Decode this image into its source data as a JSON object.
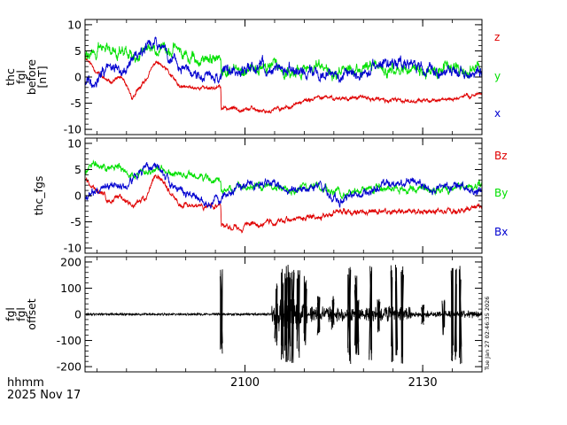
{
  "figure": {
    "footer": {
      "time_label": "hhmm",
      "date_label": "2025 Nov 17"
    },
    "stamp": "Tue Jan 27 02:46:35 2026"
  },
  "chart_data": [
    {
      "type": "line",
      "ylabel": [
        "thc",
        "fgl",
        "before",
        "[nT]"
      ],
      "ylim": [
        -11,
        11
      ],
      "yticks": [
        -10,
        -5,
        0,
        5,
        10
      ],
      "xlim": [
        2073,
        2140
      ],
      "xticks": [
        2100,
        2130
      ],
      "xtick_labels": [
        "",
        ""
      ],
      "series": [
        {
          "name": "z",
          "color": "#e00000",
          "seed": 11,
          "noise": 0.25,
          "x": [
            2073,
            2075,
            2077,
            2079,
            2081,
            2083,
            2085,
            2087,
            2089,
            2091,
            2093,
            2095.9,
            2096,
            2100,
            2104,
            2108,
            2112,
            2116,
            2120,
            2124,
            2128,
            2132,
            2136,
            2140
          ],
          "values": [
            4,
            1,
            -1,
            0,
            -4,
            -1,
            3,
            1,
            -2,
            -2,
            -2,
            -2,
            -6,
            -6,
            -6.5,
            -5.5,
            -4,
            -4,
            -4,
            -4.5,
            -4.5,
            -4.5,
            -4,
            -3
          ]
        },
        {
          "name": "y",
          "color": "#00e000",
          "seed": 22,
          "noise": 0.7,
          "x": [
            2073,
            2075,
            2077,
            2079,
            2081,
            2083,
            2085,
            2087,
            2089,
            2091,
            2093,
            2095.9,
            2096,
            2100,
            2104,
            2108,
            2112,
            2116,
            2120,
            2124,
            2128,
            2132,
            2136,
            2140
          ],
          "values": [
            4,
            5,
            6,
            5,
            4,
            5.5,
            5,
            5,
            4.5,
            4,
            3.5,
            3,
            1,
            1.5,
            2,
            1,
            2,
            1,
            2,
            1.5,
            1.5,
            1.5,
            1.5,
            1.5
          ]
        },
        {
          "name": "x",
          "color": "#0000d0",
          "seed": 33,
          "noise": 0.7,
          "x": [
            2073,
            2075,
            2077,
            2079,
            2081,
            2083,
            2085,
            2087,
            2089,
            2091,
            2093,
            2095.9,
            2096,
            2100,
            2104,
            2108,
            2112,
            2116,
            2120,
            2124,
            2128,
            2132,
            2136,
            2140
          ],
          "values": [
            -1,
            0,
            2,
            2,
            3,
            5,
            6,
            4,
            2,
            1,
            0,
            0,
            0.5,
            2,
            2,
            1,
            1,
            0,
            1,
            2.5,
            2.5,
            1,
            1,
            1
          ]
        }
      ]
    },
    {
      "type": "line",
      "ylabel": [
        "thc_fgs"
      ],
      "ylim": [
        -11,
        11
      ],
      "yticks": [
        -10,
        -5,
        0,
        5,
        10
      ],
      "xlim": [
        2073,
        2140
      ],
      "xticks": [
        2100,
        2130
      ],
      "xtick_labels": [
        "",
        ""
      ],
      "series": [
        {
          "name": "Bz",
          "color": "#e00000",
          "seed": 44,
          "noise": 0.35,
          "x": [
            2073,
            2075,
            2077,
            2079,
            2081,
            2083,
            2085,
            2087,
            2089,
            2091,
            2093,
            2095.9,
            2096,
            2100,
            2104,
            2108,
            2112,
            2116,
            2120,
            2124,
            2128,
            2132,
            2136,
            2140
          ],
          "values": [
            3,
            1,
            -1,
            0,
            -2,
            -1,
            4,
            1,
            -2,
            -2,
            -2,
            -2,
            -6,
            -6,
            -5,
            -4.5,
            -4,
            -3,
            -3,
            -3,
            -3,
            -3,
            -3,
            -2
          ]
        },
        {
          "name": "By",
          "color": "#00e000",
          "seed": 55,
          "noise": 0.45,
          "x": [
            2073,
            2075,
            2077,
            2079,
            2081,
            2083,
            2085,
            2087,
            2089,
            2091,
            2093,
            2095.9,
            2096,
            2100,
            2104,
            2108,
            2112,
            2116,
            2120,
            2124,
            2128,
            2132,
            2136,
            2140
          ],
          "values": [
            5,
            6,
            5.5,
            5,
            4,
            5,
            5,
            4.5,
            4,
            4,
            3.5,
            3,
            1,
            1.5,
            2,
            1,
            2,
            0,
            1,
            1.5,
            1.5,
            1,
            1.5,
            2
          ]
        },
        {
          "name": "Bx",
          "color": "#0000d0",
          "seed": 66,
          "noise": 0.5,
          "x": [
            2073,
            2075,
            2077,
            2079,
            2081,
            2083,
            2085,
            2087,
            2089,
            2091,
            2093,
            2095.9,
            2096,
            2100,
            2104,
            2108,
            2112,
            2116,
            2120,
            2124,
            2128,
            2132,
            2136,
            2140
          ],
          "values": [
            0,
            1,
            2,
            2,
            3,
            5,
            6,
            3,
            1,
            0,
            -1,
            -1,
            0,
            2,
            2.5,
            1,
            2,
            -1,
            1,
            2,
            3,
            1,
            2,
            1
          ]
        }
      ]
    },
    {
      "type": "line",
      "ylabel": [
        "fgl",
        "fgl",
        "offset"
      ],
      "ylim": [
        -220,
        220
      ],
      "yticks": [
        -200,
        -100,
        0,
        100,
        200
      ],
      "xlim": [
        2073,
        2140
      ],
      "xticks": [
        2100,
        2130
      ],
      "xtick_labels": [
        "2100",
        "2130"
      ],
      "series": [
        {
          "name": "",
          "color": "#000000",
          "seed": 77,
          "noise": 0,
          "x": [
            2073,
            2140
          ],
          "values": [
            0,
            0
          ],
          "spikes": [
            {
              "x": 2096.0,
              "ymin": -160,
              "ymax": 175
            },
            {
              "x": 2105.2,
              "ymin": -120,
              "ymax": 120
            },
            {
              "x": 2106.3,
              "ymin": -190,
              "ymax": 190
            },
            {
              "x": 2106.9,
              "ymin": -190,
              "ymax": 190
            },
            {
              "x": 2107.5,
              "ymin": -180,
              "ymax": 190
            },
            {
              "x": 2108.1,
              "ymin": -190,
              "ymax": 190
            },
            {
              "x": 2109.0,
              "ymin": -170,
              "ymax": 180
            },
            {
              "x": 2110.2,
              "ymin": -120,
              "ymax": 150
            },
            {
              "x": 2112.4,
              "ymin": -80,
              "ymax": 70
            },
            {
              "x": 2114.8,
              "ymin": -60,
              "ymax": 70
            },
            {
              "x": 2117.6,
              "ymin": -190,
              "ymax": 190
            },
            {
              "x": 2118.7,
              "ymin": -160,
              "ymax": 150
            },
            {
              "x": 2119.0,
              "ymin": -170,
              "ymax": 60
            },
            {
              "x": 2121.2,
              "ymin": -190,
              "ymax": 190
            },
            {
              "x": 2122.6,
              "ymin": -70,
              "ymax": 60
            },
            {
              "x": 2124.8,
              "ymin": -190,
              "ymax": 190
            },
            {
              "x": 2125.6,
              "ymin": -190,
              "ymax": 190
            },
            {
              "x": 2126.6,
              "ymin": -190,
              "ymax": 190
            },
            {
              "x": 2130.0,
              "ymin": -40,
              "ymax": 40
            },
            {
              "x": 2133.5,
              "ymin": -80,
              "ymax": 60
            },
            {
              "x": 2135.0,
              "ymin": -190,
              "ymax": 190
            },
            {
              "x": 2135.6,
              "ymin": -190,
              "ymax": 190
            },
            {
              "x": 2136.4,
              "ymin": -190,
              "ymax": 190
            }
          ],
          "bursts": [
            {
              "x0": 2104.5,
              "x1": 2110.5,
              "amp": 60
            },
            {
              "x0": 2111,
              "x1": 2128,
              "amp": 28
            },
            {
              "x0": 2128,
              "x1": 2140,
              "amp": 12
            }
          ],
          "base_noise": 4
        }
      ]
    }
  ]
}
